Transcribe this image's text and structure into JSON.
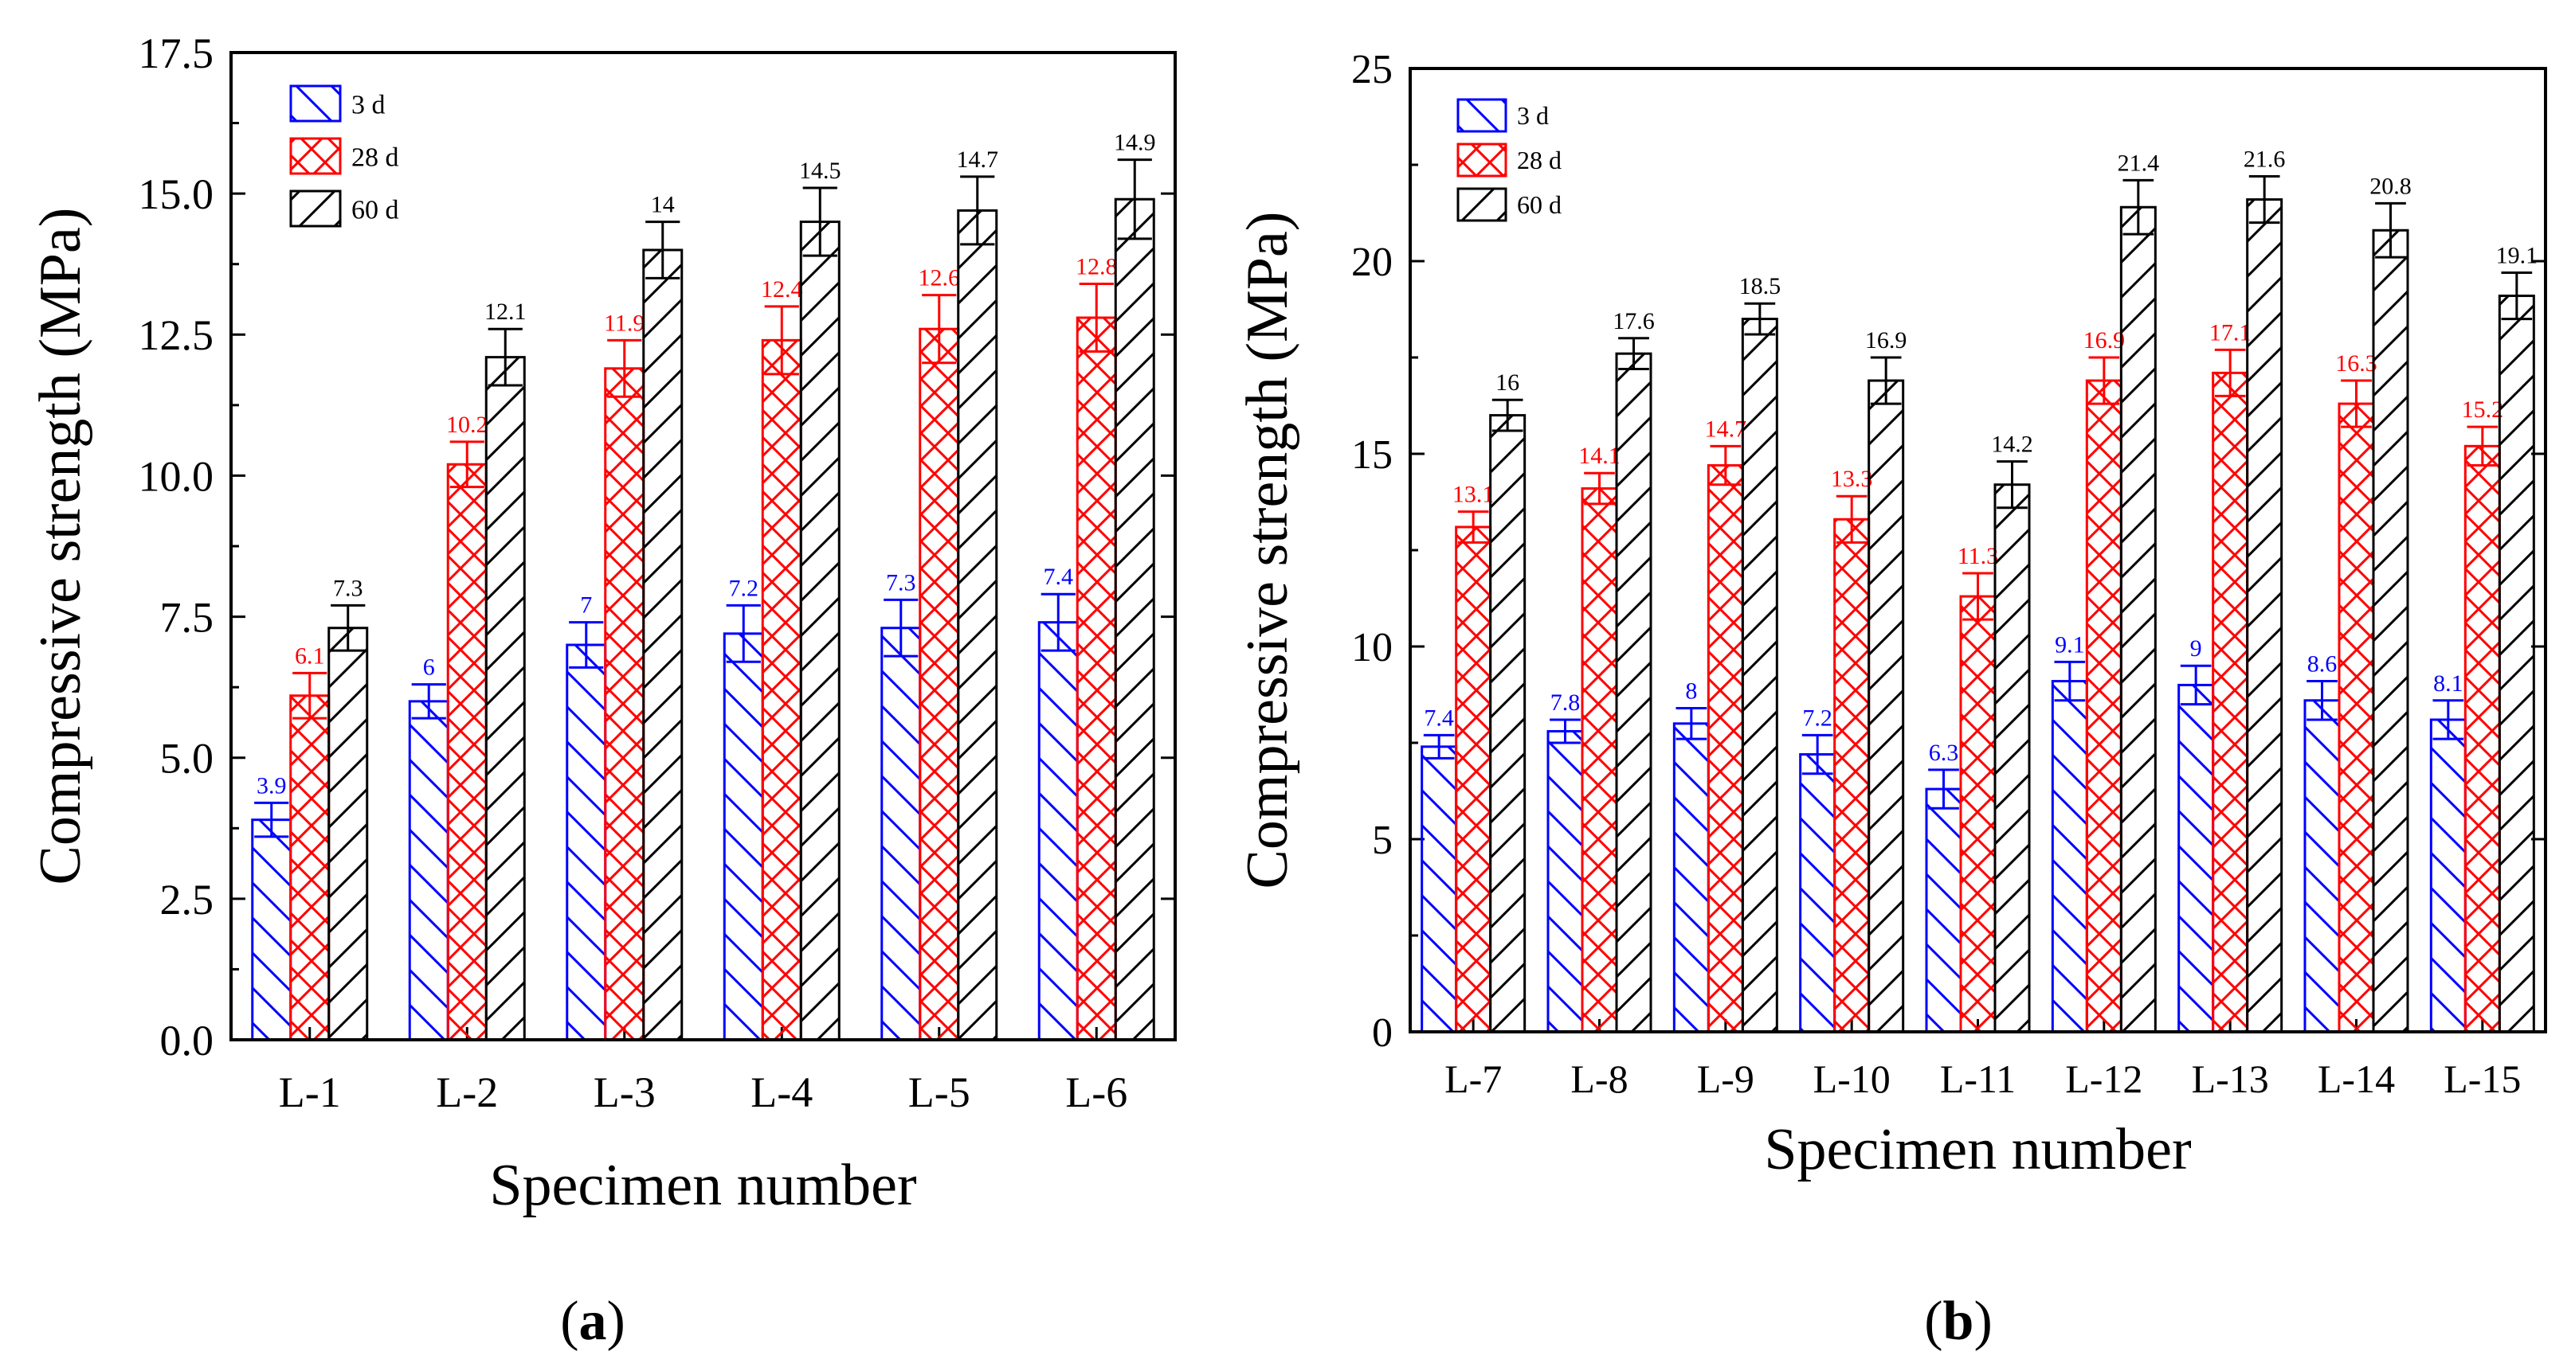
{
  "colors": {
    "d3": "#0000ff",
    "d28": "#ff0000",
    "d60": "#000000"
  },
  "chart_data": [
    {
      "type": "bar",
      "caption": "(a)",
      "caption_letter": "a",
      "ylabel": "Compressive strength (MPa)",
      "xlabel": "Specimen number",
      "ylim": [
        0,
        17.5
      ],
      "yticks": [
        "0.0",
        "2.5",
        "5.0",
        "7.5",
        "10.0",
        "12.5",
        "15.0",
        "17.5"
      ],
      "ytick_values": [
        0,
        2.5,
        5,
        7.5,
        10,
        12.5,
        15,
        17.5
      ],
      "categories": [
        "L-1",
        "L-2",
        "L-3",
        "L-4",
        "L-5",
        "L-6"
      ],
      "legend_position": "top-left",
      "series": [
        {
          "name": "3 d",
          "key": "d3",
          "values": [
            3.9,
            6,
            7,
            7.2,
            7.3,
            7.4
          ],
          "labels": [
            "3.9",
            "6",
            "7",
            "7.2",
            "7.3",
            "7.4"
          ],
          "errors": [
            0.3,
            0.3,
            0.4,
            0.5,
            0.5,
            0.5
          ]
        },
        {
          "name": "28 d",
          "key": "d28",
          "values": [
            6.1,
            10.2,
            11.9,
            12.4,
            12.6,
            12.8
          ],
          "labels": [
            "6.1",
            "10.2",
            "11.9",
            "12.4",
            "12.6",
            "12.8"
          ],
          "errors": [
            0.4,
            0.4,
            0.5,
            0.6,
            0.6,
            0.6
          ]
        },
        {
          "name": "60 d",
          "key": "d60",
          "values": [
            7.3,
            12.1,
            14,
            14.5,
            14.7,
            14.9
          ],
          "labels": [
            "7.3",
            "12.1",
            "14",
            "14.5",
            "14.7",
            "14.9"
          ],
          "errors": [
            0.4,
            0.5,
            0.5,
            0.6,
            0.6,
            0.7
          ]
        }
      ]
    },
    {
      "type": "bar",
      "caption": "(b)",
      "caption_letter": "b",
      "ylabel": "Compressive strength (MPa)",
      "xlabel": "Specimen number",
      "ylim": [
        0,
        25
      ],
      "yticks": [
        "0",
        "5",
        "10",
        "15",
        "20",
        "25"
      ],
      "ytick_values": [
        0,
        5,
        10,
        15,
        20,
        25
      ],
      "categories": [
        "L-7",
        "L-8",
        "L-9",
        "L-10",
        "L-11",
        "L-12",
        "L-13",
        "L-14",
        "L-15"
      ],
      "legend_position": "top-left",
      "series": [
        {
          "name": "3 d",
          "key": "d3",
          "values": [
            7.4,
            7.8,
            8,
            7.2,
            6.3,
            9.1,
            9,
            8.6,
            8.1
          ],
          "labels": [
            "7.4",
            "7.8",
            "8",
            "7.2",
            "6.3",
            "9.1",
            "9",
            "8.6",
            "8.1"
          ],
          "errors": [
            0.3,
            0.3,
            0.4,
            0.5,
            0.5,
            0.5,
            0.5,
            0.5,
            0.5
          ]
        },
        {
          "name": "28 d",
          "key": "d28",
          "values": [
            13.1,
            14.1,
            14.7,
            13.3,
            11.3,
            16.9,
            17.1,
            16.3,
            15.2
          ],
          "labels": [
            "13.1",
            "14.1",
            "14.7",
            "13.3",
            "11.3",
            "16.9",
            "17.1",
            "16.3",
            "15.2"
          ],
          "errors": [
            0.4,
            0.4,
            0.5,
            0.6,
            0.6,
            0.6,
            0.6,
            0.6,
            0.5
          ]
        },
        {
          "name": "60 d",
          "key": "d60",
          "values": [
            16,
            17.6,
            18.5,
            16.9,
            14.2,
            21.4,
            21.6,
            20.8,
            19.1
          ],
          "labels": [
            "16",
            "17.6",
            "18.5",
            "16.9",
            "14.2",
            "21.4",
            "21.6",
            "20.8",
            "19.1"
          ],
          "errors": [
            0.4,
            0.4,
            0.4,
            0.6,
            0.6,
            0.7,
            0.6,
            0.7,
            0.6
          ]
        }
      ]
    }
  ]
}
